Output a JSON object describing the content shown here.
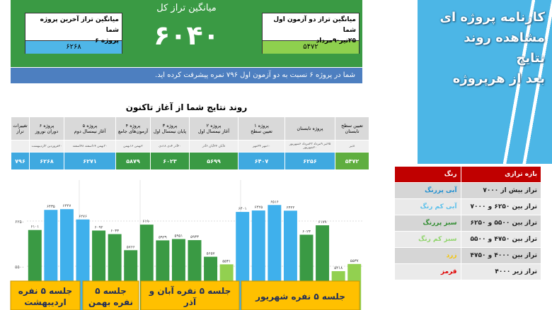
{
  "header": {
    "title": "میانگین تراز کل",
    "total": "۶۰۴۰",
    "last_project": {
      "label": "میانگین تراز آخرین پروژه شما",
      "project": "پروژه ۶",
      "value": "۶۲۶۸"
    },
    "first_two": {
      "label": "میانگین تراز دو آزمون اول شما",
      "dates": "۲۵تیر-۹مرداد",
      "value": "۵۴۷۲"
    },
    "progress": "شما در پروژه ۶ نسبت به دو آزمون اول ۷۹۶ نمره پیشرفت کرده اید."
  },
  "table": {
    "title": "روند نتایج شما از آغاز تاکنون",
    "columns": [
      {
        "name": "تعیین سطح تابستان",
        "dates": "۸تیر",
        "value": "۵۴۷۲",
        "color": "#5fae3f"
      },
      {
        "name": "پروژه تابستان",
        "dates": "۲۵تیر ۹مرداد ۲۳مرداد ۶شهریور ۲۰شهریور",
        "value": "۶۲۵۶",
        "color": "#3fa9e0"
      },
      {
        "name": "پروژه ۱",
        "sub": "تعیین سطح",
        "dates": "۱۰مهر ۲۴مهر",
        "value": "۶۴۰۷",
        "color": "#3fa9e0"
      },
      {
        "name": "پروژه ۲",
        "sub": "آغاز نیمسال اول",
        "dates": "۸آبان ۲۲آبان ۶آذر",
        "value": "۵۶۹۹",
        "color": "#3a9a44"
      },
      {
        "name": "پروژه ۳",
        "sub": "پایان نیمسال اول",
        "dates": "۲۰آذر ۴دی ۱۸دی",
        "value": "۶۰۲۳",
        "color": "#3a9a44"
      },
      {
        "name": "پروژه ۴",
        "sub": "آزمون‌های جامع",
        "dates": "۲بهمن ۱۶بهمن",
        "value": "۵۸۷۹",
        "color": "#3a9a44"
      },
      {
        "name": "پروژه ۵",
        "sub": "آغاز نیمسال دوم",
        "dates": "۳۰بهمن ۱۴اسفند ۲۸اسفند",
        "value": "۶۲۷۱",
        "color": "#3fa9e0"
      },
      {
        "name": "پروژه ۶",
        "sub": "دوران نوروز",
        "dates": "۲۰فروردین ۳اردیبهشت",
        "value": "۶۲۶۸",
        "color": "#3fa9e0"
      },
      {
        "name": "تغییرات تراز",
        "value": "۷۹۶",
        "color": "#3fa9e0"
      }
    ]
  },
  "chart_data": {
    "type": "bar",
    "values": [
      6101,
      6435,
      6447,
      6276,
      6092,
      6033,
      5766,
      6190,
      5929,
      5951,
      5933,
      5657,
      5531,
      6401,
      6425,
      6516,
      6422,
      6023,
      6179,
      5418,
      5537
    ],
    "value_labels": [
      "۶۱۰۱",
      "۶۴۳۵",
      "۶۴۴۷",
      "۶۲۷۶",
      "۶۰۹۲",
      "۶۰۳۳",
      "۵۷۶۶",
      "۶۱۹۰",
      "۵۹۲۹",
      "۵۹۵۱",
      "۵۹۳۳",
      "۵۶۵۷",
      "۵۵۳۱",
      "۶۴۰۱",
      "۶۴۲۵",
      "۶۵۱۶",
      "۶۴۲۲",
      "۶۰۲۳",
      "۶۱۷۹",
      "۵۴۱۸",
      "۵۵۳۷"
    ],
    "colors": [
      "#3a9a44",
      "#3fb0ec",
      "#3fb0ec",
      "#3fb0ec",
      "#3a9a44",
      "#3a9a44",
      "#3a9a44",
      "#3a9a44",
      "#3a9a44",
      "#3a9a44",
      "#3a9a44",
      "#3a9a44",
      "#92d050",
      "#3fb0ec",
      "#3fb0ec",
      "#3fb0ec",
      "#3fb0ec",
      "#3a9a44",
      "#3a9a44",
      "#92d050",
      "#92d050"
    ],
    "ylim": [
      4773,
      6930
    ],
    "yticks": [
      {
        "value": 5500,
        "label": "۵۵۰۰"
      },
      {
        "value": 6250,
        "label": "۶۲۵۰"
      }
    ],
    "grid": true,
    "group_labels": [
      [
        "جلسه ۵ نفره",
        "اردیبهشت"
      ],
      [
        "جلسه ۵",
        "نفره بهمن"
      ],
      [
        "جلسه ۵ نفره آبان و",
        "آذر"
      ],
      [
        "جلسه ۵ نفره شهریور"
      ]
    ]
  },
  "legend_table": {
    "headers": [
      "بازه ترازی",
      "رنگ"
    ],
    "rows": [
      {
        "range": "تراز بیش از ۷۰۰۰",
        "color_name": "آبی پررنگ",
        "color": "#1f8fd0"
      },
      {
        "range": "تراز بین ۶۲۵۰ و ۷۰۰۰",
        "color_name": "آبی کم رنگ",
        "color": "#5bc0eb"
      },
      {
        "range": "تراز بین ۵۵۰۰ و ۶۲۵۰",
        "color_name": "سبز پررنگ",
        "color": "#2e8b2e"
      },
      {
        "range": "تراز بین ۴۷۵۰ و ۵۵۰۰",
        "color_name": "سبز کم رنگ",
        "color": "#8fd46a"
      },
      {
        "range": "تراز بین ۴۰۰۰ و ۴۷۵۰",
        "color_name": "زرد",
        "color": "#f5c400"
      },
      {
        "range": "تراز زیر ۴۰۰۰",
        "color_name": "قرمز",
        "color": "#e00000"
      }
    ]
  },
  "side_title": [
    "کارنامه پروژه ای",
    "مشاهده روند",
    "نتایج",
    "بعد از هرپروژه"
  ]
}
